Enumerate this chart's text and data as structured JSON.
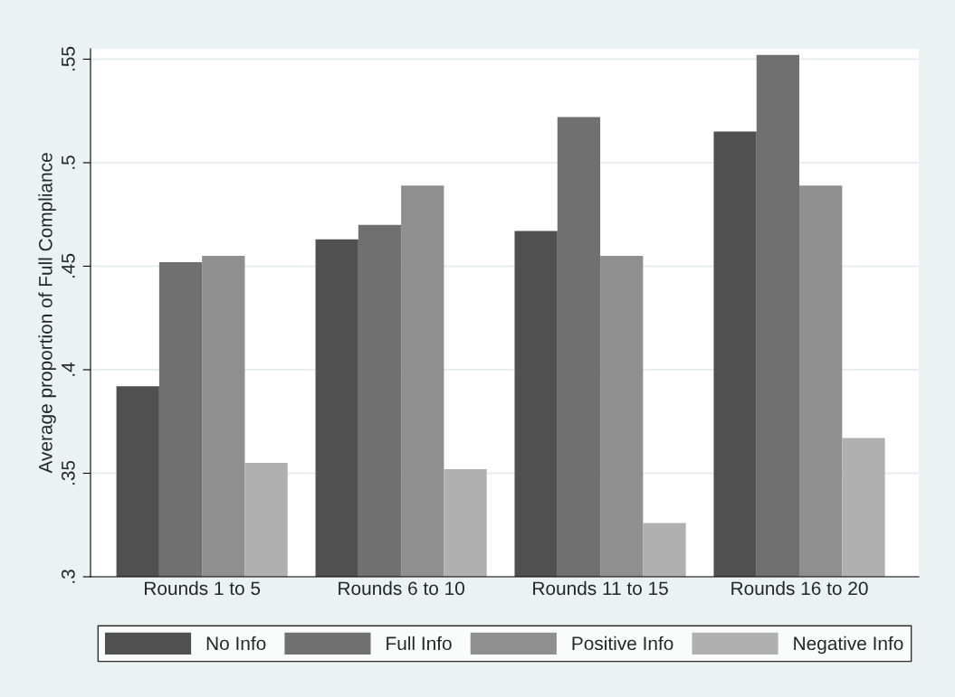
{
  "chart_data": {
    "type": "bar",
    "ylabel": "Average proportion of Full Compliance",
    "categories": [
      "Rounds 1 to 5",
      "Rounds 6 to 10",
      "Rounds 11 to 15",
      "Rounds 16 to 20"
    ],
    "series": [
      {
        "name": "No Info",
        "color": "#505050",
        "values": [
          0.392,
          0.463,
          0.467,
          0.515
        ]
      },
      {
        "name": "Full Info",
        "color": "#707070",
        "values": [
          0.452,
          0.47,
          0.522,
          0.552
        ]
      },
      {
        "name": "Positive Info",
        "color": "#8f8f8f",
        "values": [
          0.455,
          0.489,
          0.455,
          0.489
        ]
      },
      {
        "name": "Negative Info",
        "color": "#b0b0b0",
        "values": [
          0.355,
          0.352,
          0.326,
          0.367
        ]
      }
    ],
    "ylim": [
      0.3,
      0.555
    ],
    "yticks": [
      {
        "value": 0.3,
        "label": ".3"
      },
      {
        "value": 0.35,
        "label": ".35"
      },
      {
        "value": 0.4,
        "label": ".4"
      },
      {
        "value": 0.45,
        "label": ".45"
      },
      {
        "value": 0.5,
        "label": ".5"
      },
      {
        "value": 0.55,
        "label": ".55"
      }
    ],
    "grid": "y",
    "legend": "bottom"
  }
}
